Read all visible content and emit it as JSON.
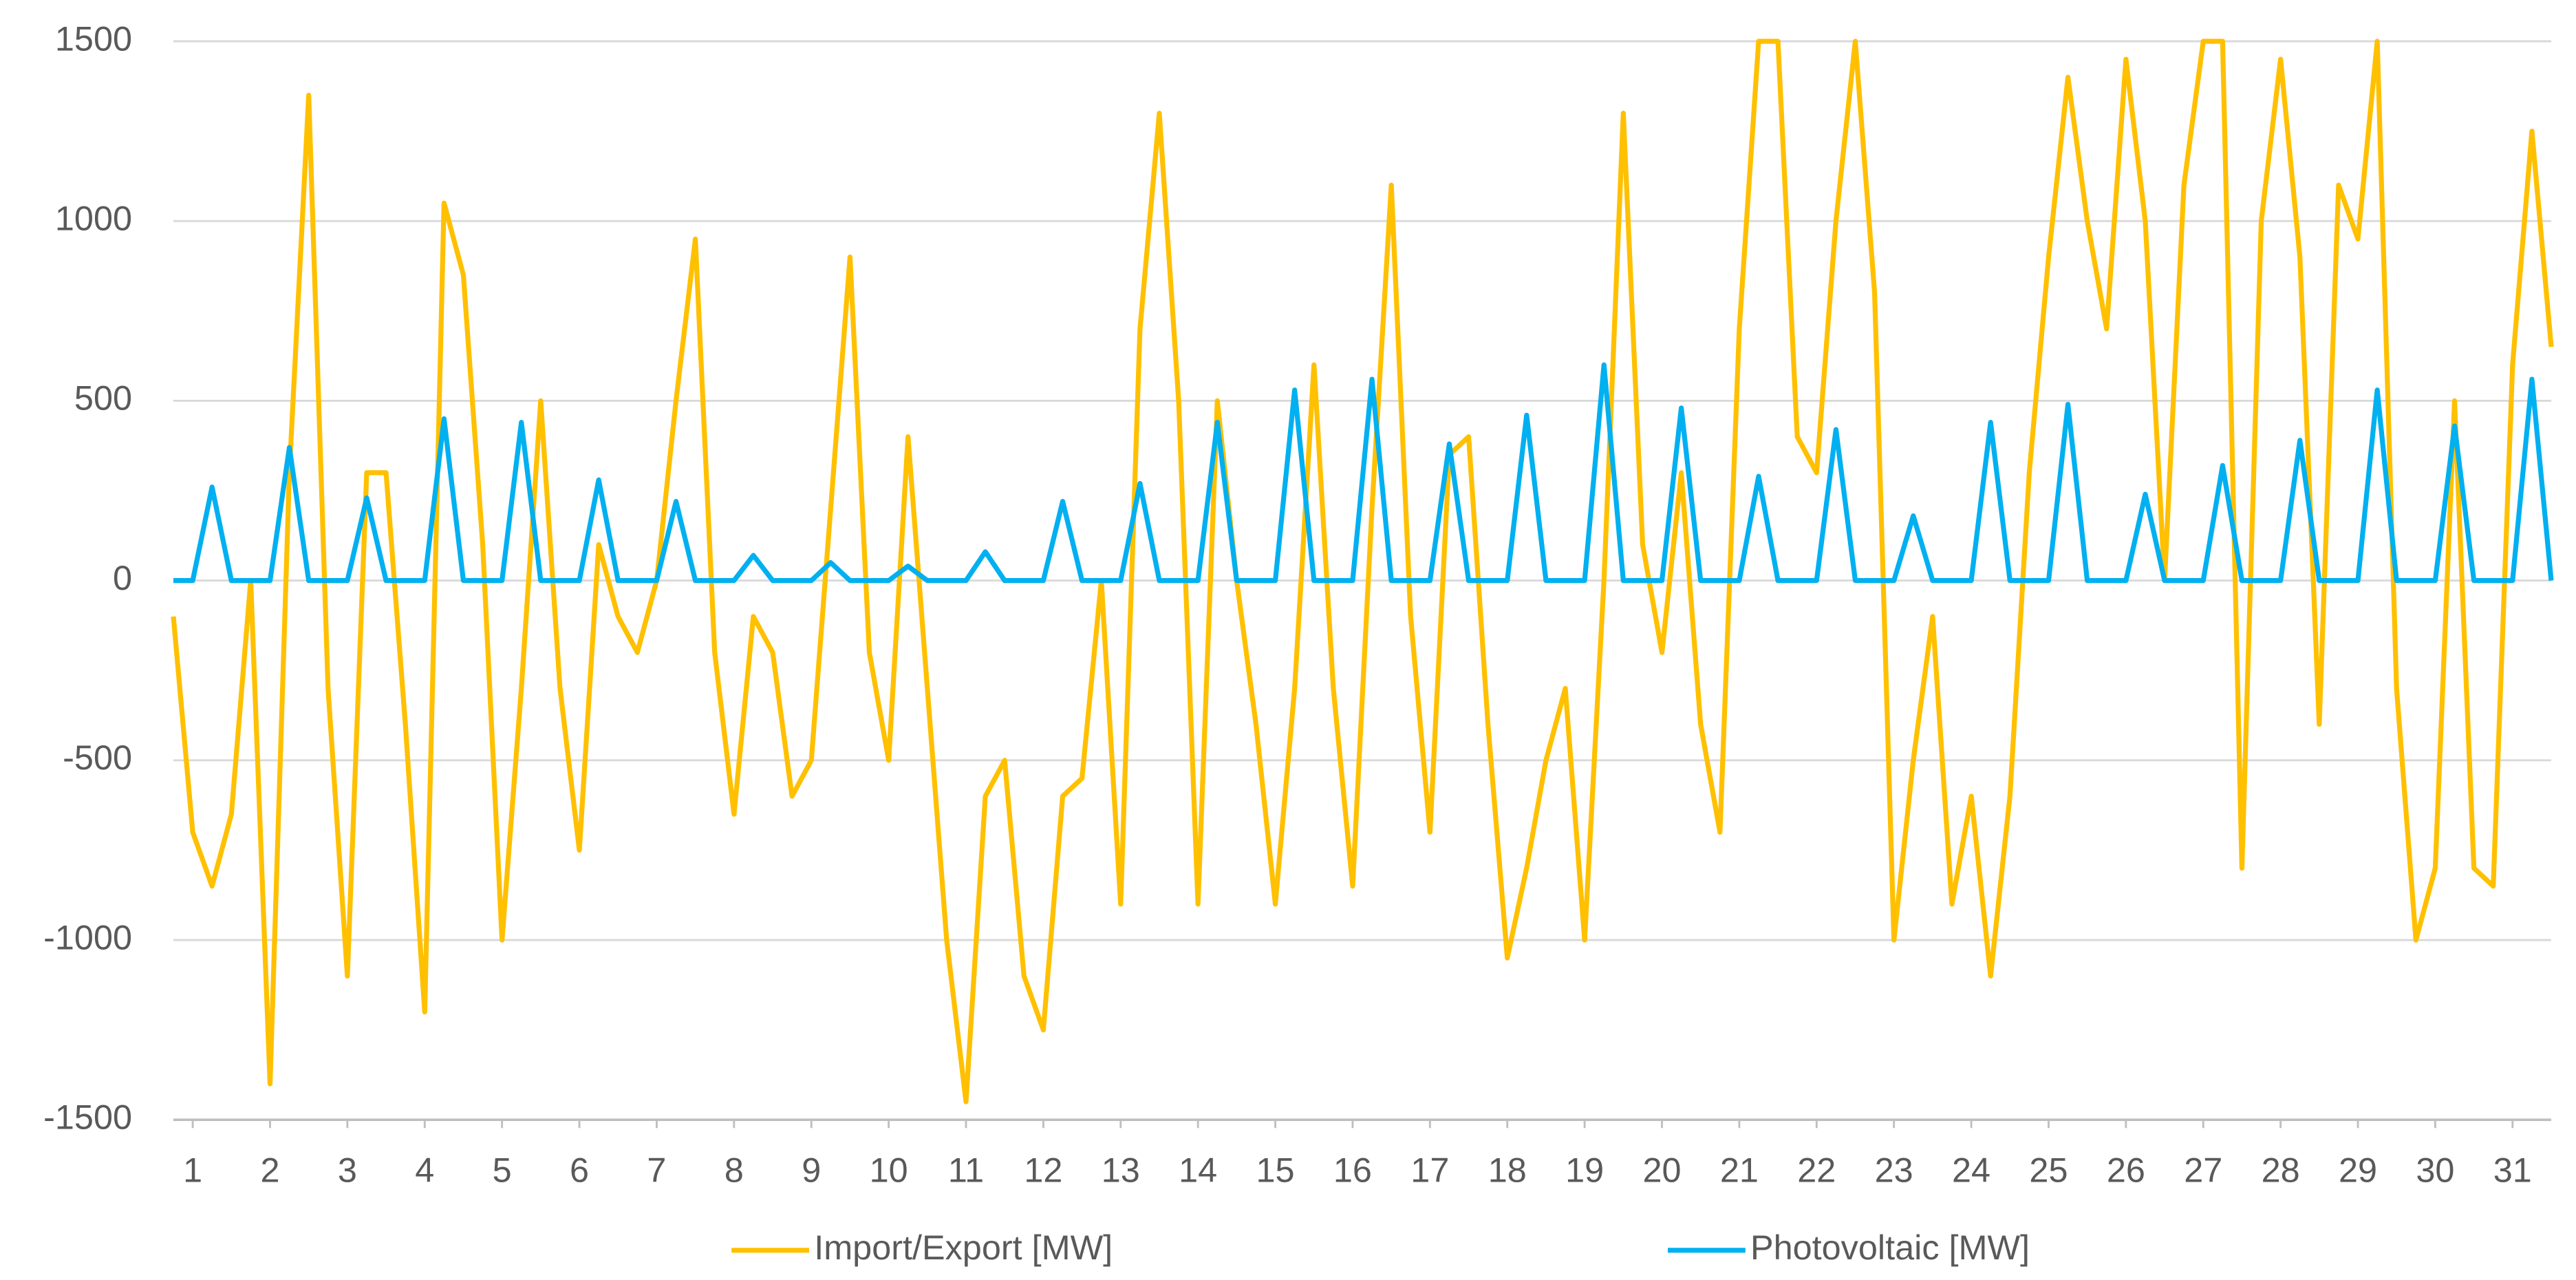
{
  "chart_data": {
    "type": "line",
    "x": [
      0.75,
      1,
      1.25,
      1.5,
      1.75,
      2,
      2.25,
      2.5,
      2.75,
      3,
      3.25,
      3.5,
      3.75,
      4,
      4.25,
      4.5,
      4.75,
      5,
      5.25,
      5.5,
      5.75,
      6,
      6.25,
      6.5,
      6.75,
      7,
      7.25,
      7.5,
      7.75,
      8,
      8.25,
      8.5,
      8.75,
      9,
      9.25,
      9.5,
      9.75,
      10,
      10.25,
      10.5,
      10.75,
      11,
      11.25,
      11.5,
      11.75,
      12,
      12.25,
      12.5,
      12.75,
      13,
      13.25,
      13.5,
      13.75,
      14,
      14.25,
      14.5,
      14.75,
      15,
      15.25,
      15.5,
      15.75,
      16,
      16.25,
      16.5,
      16.75,
      17,
      17.25,
      17.5,
      17.75,
      18,
      18.25,
      18.5,
      18.75,
      19,
      19.25,
      19.5,
      19.75,
      20,
      20.25,
      20.5,
      20.75,
      21,
      21.25,
      21.5,
      21.75,
      22,
      22.25,
      22.5,
      22.75,
      23,
      23.25,
      23.5,
      23.75,
      24,
      24.25,
      24.5,
      24.75,
      25,
      25.25,
      25.5,
      25.75,
      26,
      26.25,
      26.5,
      26.75,
      27,
      27.25,
      27.5,
      27.75,
      28,
      28.25,
      28.5,
      28.75,
      29,
      29.25,
      29.5,
      29.75,
      30,
      30.25,
      30.5,
      30.75,
      31,
      31.25,
      31.5
    ],
    "series": [
      {
        "name": "Import/Export [MW]",
        "color": "#FFC000",
        "values": [
          -100,
          -700,
          -850,
          -650,
          0,
          -1400,
          300,
          1350,
          -300,
          -1100,
          300,
          300,
          -400,
          -1200,
          1050,
          850,
          100,
          -1000,
          -300,
          500,
          -300,
          -750,
          100,
          -100,
          -200,
          0,
          500,
          950,
          -200,
          -650,
          -100,
          -200,
          -600,
          -500,
          200,
          900,
          -200,
          -500,
          400,
          -300,
          -1000,
          -1450,
          -600,
          -500,
          -1100,
          -1250,
          -600,
          -550,
          0,
          -900,
          700,
          1300,
          500,
          -900,
          500,
          0,
          -400,
          -900,
          -300,
          600,
          -300,
          -850,
          200,
          1100,
          -100,
          -700,
          350,
          400,
          -400,
          -1050,
          -800,
          -500,
          -300,
          -1000,
          0,
          1300,
          100,
          -200,
          300,
          -400,
          -700,
          700,
          1500,
          1500,
          400,
          300,
          1000,
          1500,
          800,
          -1000,
          -500,
          -100,
          -900,
          -600,
          -1100,
          -600,
          300,
          900,
          1400,
          1000,
          700,
          1450,
          1000,
          0,
          1100,
          1500,
          1500,
          -800,
          1000,
          1450,
          900,
          -400,
          1100,
          950,
          1500,
          -300,
          -1000,
          -800,
          500,
          -800,
          -850,
          600,
          1250,
          650
        ]
      },
      {
        "name": "Photovoltaic [MW]",
        "color": "#00B0F0",
        "values": [
          0,
          0,
          260,
          0,
          0,
          0,
          370,
          0,
          0,
          0,
          230,
          0,
          0,
          0,
          450,
          0,
          0,
          0,
          440,
          0,
          0,
          0,
          280,
          0,
          0,
          0,
          220,
          0,
          0,
          0,
          70,
          0,
          0,
          0,
          50,
          0,
          0,
          0,
          40,
          0,
          0,
          0,
          80,
          0,
          0,
          0,
          220,
          0,
          0,
          0,
          270,
          0,
          0,
          0,
          440,
          0,
          0,
          0,
          530,
          0,
          0,
          0,
          560,
          0,
          0,
          0,
          380,
          0,
          0,
          0,
          460,
          0,
          0,
          0,
          600,
          0,
          0,
          0,
          480,
          0,
          0,
          0,
          290,
          0,
          0,
          0,
          420,
          0,
          0,
          0,
          180,
          0,
          0,
          0,
          440,
          0,
          0,
          0,
          490,
          0,
          0,
          0,
          240,
          0,
          0,
          0,
          320,
          0,
          0,
          0,
          390,
          0,
          0,
          0,
          530,
          0,
          0,
          0,
          430,
          0,
          0,
          0,
          560,
          0
        ]
      }
    ],
    "xlim": [
      0.75,
      31.5
    ],
    "xticks": [
      1,
      2,
      3,
      4,
      5,
      6,
      7,
      8,
      9,
      10,
      11,
      12,
      13,
      14,
      15,
      16,
      17,
      18,
      19,
      20,
      21,
      22,
      23,
      24,
      25,
      26,
      27,
      28,
      29,
      30,
      31
    ],
    "ylim": [
      -1500,
      1500
    ],
    "yticks": [
      -1500,
      -1000,
      -500,
      0,
      500,
      1000,
      1500
    ],
    "grid": true,
    "legend": "bottom"
  }
}
